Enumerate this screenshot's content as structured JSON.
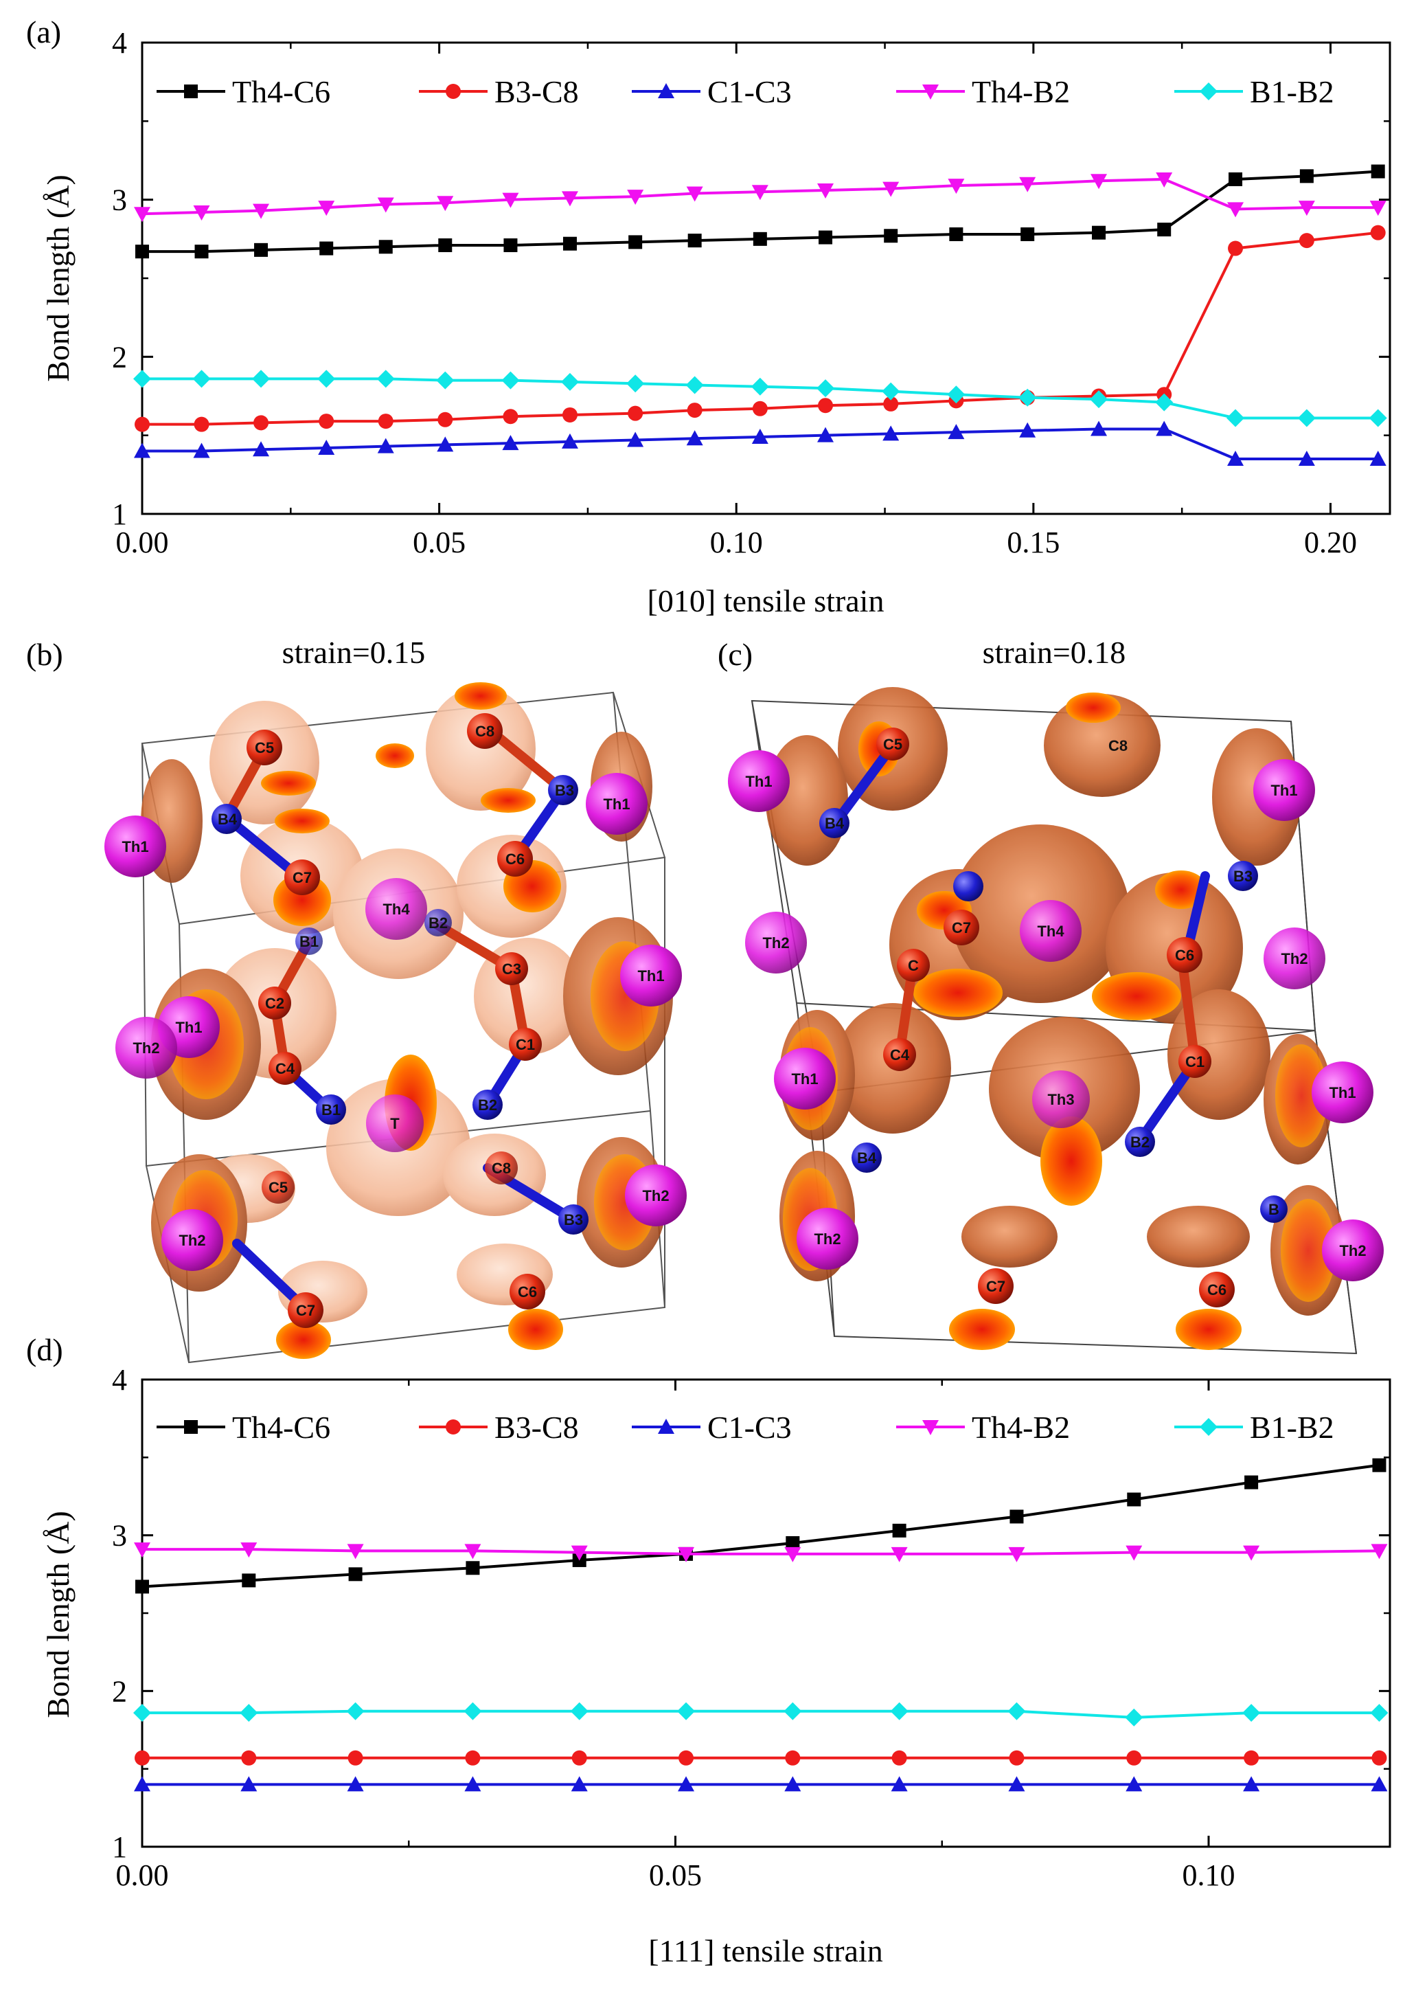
{
  "panel_labels": {
    "a": "(a)",
    "b": "(b)",
    "c": "(c)",
    "d": "(d)"
  },
  "colors": {
    "Th4-C6": "#000000",
    "B3-C8": "#ee1c1c",
    "C1-C3": "#1616d8",
    "Th4-B2": "#f010f0",
    "B1-B2": "#10e6e6",
    "thorium": "#d81bd8",
    "boron": "#1a1acc",
    "carbon": "#e03018",
    "charge_light": "#f2b08e",
    "charge_dark": "#d0622c",
    "charge_core": "#ff9a00"
  },
  "structures": {
    "b": {
      "title": "strain=0.15",
      "atom_labels": [
        "C5",
        "C8",
        "B3",
        "B4",
        "Th1",
        "Th1",
        "C7",
        "C6",
        "Th4",
        "B2",
        "B1",
        "C3",
        "Th1",
        "Th1",
        "C2",
        "C1",
        "Th2",
        "C4",
        "B1",
        "B2",
        "T",
        "C5",
        "C8",
        "B3",
        "Th2",
        "Th2",
        "C7",
        "C6"
      ]
    },
    "c": {
      "title": "strain=0.18",
      "atom_labels": [
        "C5",
        "C8",
        "Th1",
        "Th1",
        "B4",
        "B3",
        "Th2",
        "C7",
        "Th4",
        "C6",
        "Th2",
        "C",
        "C4",
        "C1",
        "Th1",
        "Th1",
        "Th3",
        "B4",
        "B2",
        "B",
        "Th2",
        "Th2",
        "C7",
        "C6"
      ]
    }
  },
  "chart_data": [
    {
      "type": "line",
      "panel": "a",
      "xlabel": "[010] tensile strain",
      "ylabel": "Bond length (Å)",
      "xlim": [
        0.0,
        0.21
      ],
      "ylim": [
        1,
        4
      ],
      "xticks": [
        "0.00",
        "0.05",
        "0.10",
        "0.15",
        "0.20"
      ],
      "yticks": [
        "1",
        "2",
        "3",
        "4"
      ],
      "legend_position": "top",
      "x": [
        0.0,
        0.01,
        0.02,
        0.031,
        0.041,
        0.051,
        0.062,
        0.072,
        0.083,
        0.093,
        0.104,
        0.115,
        0.126,
        0.137,
        0.149,
        0.161,
        0.172,
        0.184,
        0.196,
        0.208
      ],
      "series": [
        {
          "name": "Th4-C6",
          "marker": "square",
          "values": [
            2.67,
            2.67,
            2.68,
            2.69,
            2.7,
            2.71,
            2.71,
            2.72,
            2.73,
            2.74,
            2.75,
            2.76,
            2.77,
            2.78,
            2.78,
            2.79,
            2.81,
            3.13,
            3.15,
            3.18
          ]
        },
        {
          "name": "B3-C8",
          "marker": "circle",
          "values": [
            1.57,
            1.57,
            1.58,
            1.59,
            1.59,
            1.6,
            1.62,
            1.63,
            1.64,
            1.66,
            1.67,
            1.69,
            1.7,
            1.72,
            1.74,
            1.75,
            1.76,
            2.69,
            2.74,
            2.79
          ]
        },
        {
          "name": "C1-C3",
          "marker": "triangle-up",
          "values": [
            1.4,
            1.4,
            1.41,
            1.42,
            1.43,
            1.44,
            1.45,
            1.46,
            1.47,
            1.48,
            1.49,
            1.5,
            1.51,
            1.52,
            1.53,
            1.54,
            1.54,
            1.35,
            1.35,
            1.35
          ]
        },
        {
          "name": "Th4-B2",
          "marker": "triangle-down",
          "values": [
            2.91,
            2.92,
            2.93,
            2.95,
            2.97,
            2.98,
            3.0,
            3.01,
            3.02,
            3.04,
            3.05,
            3.06,
            3.07,
            3.09,
            3.1,
            3.12,
            3.13,
            2.94,
            2.95,
            2.95
          ]
        },
        {
          "name": "B1-B2",
          "marker": "diamond",
          "values": [
            1.86,
            1.86,
            1.86,
            1.86,
            1.86,
            1.85,
            1.85,
            1.84,
            1.83,
            1.82,
            1.81,
            1.8,
            1.78,
            1.76,
            1.74,
            1.73,
            1.71,
            1.61,
            1.61,
            1.61
          ]
        }
      ]
    },
    {
      "type": "line",
      "panel": "d",
      "xlabel": "[111] tensile strain",
      "ylabel": "Bond length (Å)",
      "xlim": [
        0.0,
        0.117
      ],
      "ylim": [
        1,
        4
      ],
      "xticks": [
        "0.00",
        "0.05",
        "0.10"
      ],
      "yticks": [
        "1",
        "2",
        "3",
        "4"
      ],
      "legend_position": "top",
      "x": [
        0.0,
        0.01,
        0.02,
        0.031,
        0.041,
        0.051,
        0.061,
        0.071,
        0.082,
        0.093,
        0.104,
        0.116
      ],
      "series": [
        {
          "name": "Th4-C6",
          "marker": "square",
          "values": [
            2.67,
            2.71,
            2.75,
            2.79,
            2.84,
            2.88,
            2.95,
            3.03,
            3.12,
            3.23,
            3.34,
            3.45
          ]
        },
        {
          "name": "B3-C8",
          "marker": "circle",
          "values": [
            1.57,
            1.57,
            1.57,
            1.57,
            1.57,
            1.57,
            1.57,
            1.57,
            1.57,
            1.57,
            1.57,
            1.57
          ]
        },
        {
          "name": "C1-C3",
          "marker": "triangle-up",
          "values": [
            1.4,
            1.4,
            1.4,
            1.4,
            1.4,
            1.4,
            1.4,
            1.4,
            1.4,
            1.4,
            1.4,
            1.4
          ]
        },
        {
          "name": "Th4-B2",
          "marker": "triangle-down",
          "values": [
            2.91,
            2.91,
            2.9,
            2.9,
            2.89,
            2.88,
            2.88,
            2.88,
            2.88,
            2.89,
            2.89,
            2.9
          ]
        },
        {
          "name": "B1-B2",
          "marker": "diamond",
          "values": [
            1.86,
            1.86,
            1.87,
            1.87,
            1.87,
            1.87,
            1.87,
            1.87,
            1.87,
            1.83,
            1.86,
            1.86
          ]
        }
      ]
    }
  ]
}
